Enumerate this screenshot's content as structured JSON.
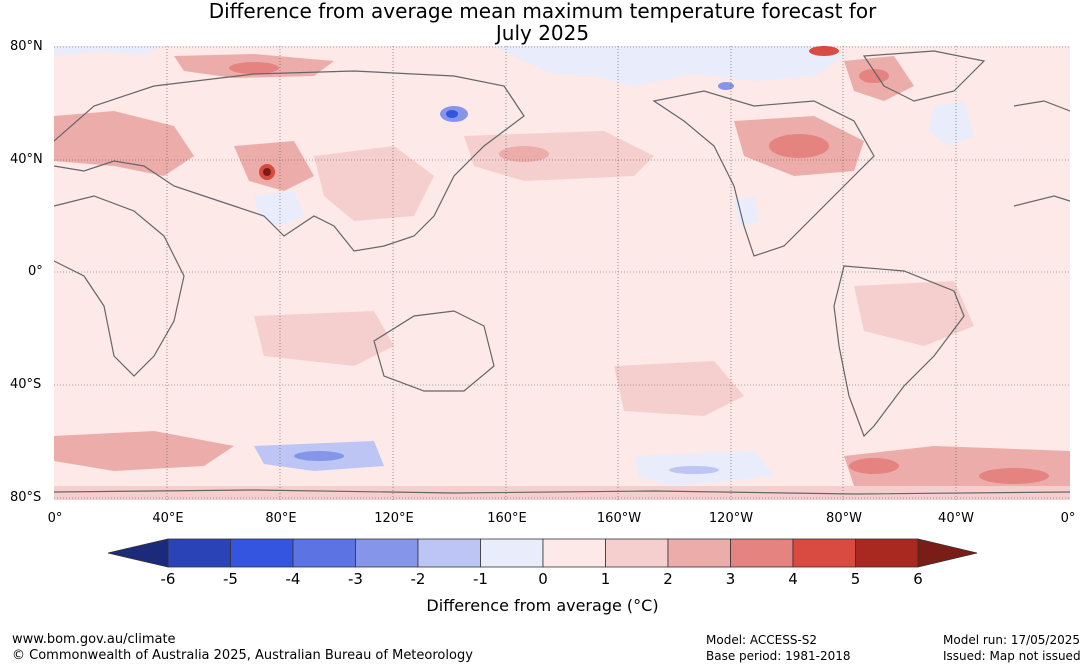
{
  "title_line1": "Difference from average mean maximum temperature forecast for",
  "title_line2": "July 2025",
  "lat_labels": [
    "80°N",
    "40°N",
    "0°",
    "40°S",
    "80°S"
  ],
  "lon_labels": [
    "0°",
    "40°E",
    "80°E",
    "120°E",
    "160°E",
    "160°W",
    "120°W",
    "80°W",
    "40°W",
    "0°"
  ],
  "colorbar": {
    "ticks": [
      "-6",
      "-5",
      "-4",
      "-3",
      "-2",
      "-1",
      "0",
      "1",
      "2",
      "3",
      "4",
      "5",
      "6"
    ],
    "colors": [
      "#1b2a7a",
      "#2a44b8",
      "#3355e0",
      "#5c74e3",
      "#8596ea",
      "#bcc5f3",
      "#e8ecfb",
      "#fce9e8",
      "#f5cfcd",
      "#ecadaa",
      "#e4837f",
      "#d94a40",
      "#a9281f",
      "#7a1d16"
    ],
    "label": "Difference from average (°C)"
  },
  "footer": {
    "url": "www.bom.gov.au/climate",
    "copyright": "© Commonwealth of Australia 2025, Australian Bureau of Meteorology",
    "model": "Model: ACCESS-S2",
    "base_period": "Base period: 1981-2018",
    "model_run": "Model run: 17/05/2025",
    "issued": "Issued: Map not issued"
  },
  "map_colors": {
    "ocean_base": "#fce9e8",
    "warm1": "#f5cfcd",
    "warm2": "#ecadaa",
    "warm3": "#e4837f",
    "warm4": "#d94a40",
    "warm5": "#a9281f",
    "cool1": "#e8ecfb",
    "cool2": "#bcc5f3",
    "cool3": "#8596ea",
    "cool4": "#3355e0",
    "coast": "#666666"
  }
}
